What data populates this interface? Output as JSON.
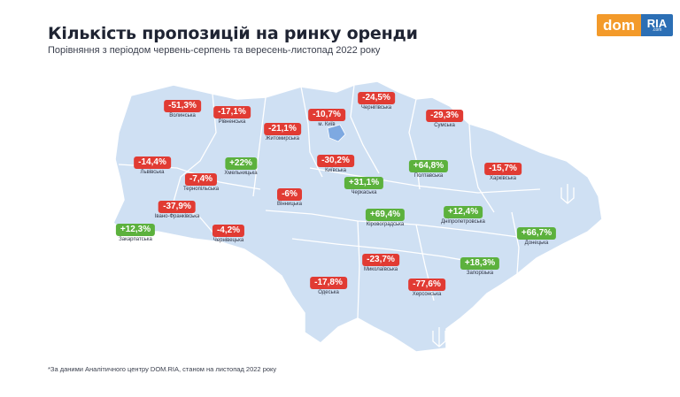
{
  "title": "Кількість пропозицій на ринку оренди",
  "subtitle": "Порівняння з періодом червень-серпень та вересень-листопад 2022 року",
  "logo": {
    "left": "dom",
    "right": "RIA",
    "right_small": ".com"
  },
  "colors": {
    "negative": "#e13b33",
    "positive": "#5cb13d",
    "map_fill": "#cfe0f3",
    "map_border": "#ffffff"
  },
  "regions": [
    {
      "value": "-51,3%",
      "name": "Волинська"
    },
    {
      "value": "-17,1%",
      "name": "Рівненська"
    },
    {
      "value": "-21,1%",
      "name": "Житомирська"
    },
    {
      "value": "-10,7%",
      "name": "м. Київ"
    },
    {
      "value": "-24,5%",
      "name": "Чернігівська"
    },
    {
      "value": "-29,3%",
      "name": "Сумська"
    },
    {
      "value": "-14,4%",
      "name": "Львівська"
    },
    {
      "value": "+22%",
      "name": "Хмельницька"
    },
    {
      "value": "-7,4%",
      "name": "Тернопільська"
    },
    {
      "value": "-30,2%",
      "name": "Київська"
    },
    {
      "value": "+31,1%",
      "name": "Черкаська"
    },
    {
      "value": "+64,8%",
      "name": "Полтавська"
    },
    {
      "value": "-15,7%",
      "name": "Харківська"
    },
    {
      "value": "-37,9%",
      "name": "Івано-Франківська"
    },
    {
      "value": "-6%",
      "name": "Вінницька"
    },
    {
      "value": "+69,4%",
      "name": "Кіровоградська"
    },
    {
      "value": "+12,4%",
      "name": "Дніпропетровська"
    },
    {
      "value": "+12,3%",
      "name": "Закарпатська"
    },
    {
      "value": "-4,2%",
      "name": "Чернівецька"
    },
    {
      "value": "+66,7%",
      "name": "Донецька"
    },
    {
      "value": "-23,7%",
      "name": "Миколаївська"
    },
    {
      "value": "+18,3%",
      "name": "Запорізька"
    },
    {
      "value": "-17,8%",
      "name": "Одеська"
    },
    {
      "value": "-77,6%",
      "name": "Херсонська"
    }
  ],
  "footnote": "*За даними Аналітичного центру DOM.RIA, станом на листопад 2022 року"
}
